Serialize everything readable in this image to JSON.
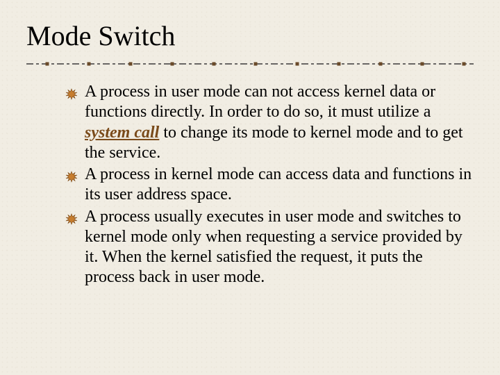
{
  "slide": {
    "title": "Mode Switch",
    "background_color": "#f1ede3",
    "text_color": "#000000",
    "title_fontsize": 40,
    "body_fontsize": 24,
    "divider": {
      "stroke_color": "#3a3a3a",
      "square_fill": "#6a4a2a",
      "pattern": "dashed-with-squares"
    },
    "bullet_icon": {
      "name": "burst-icon",
      "fill": "#c77d2e",
      "stroke": "#7a4a1a"
    },
    "bullets": [
      {
        "runs": [
          {
            "text": "A process in user mode can not access kernel data or functions directly. In order to do so, it must utilize a "
          },
          {
            "text": "system call",
            "emph": true
          },
          {
            "text": " to change its mode to kernel mode and to get the service."
          }
        ]
      },
      {
        "runs": [
          {
            "text": "A process in kernel mode can access data and functions in its user address space."
          }
        ]
      },
      {
        "runs": [
          {
            "text": "A process usually executes in user mode and switches to kernel mode only when requesting a service provided by it. When the kernel satisfied the request, it puts the process  back in user mode."
          }
        ]
      }
    ]
  }
}
